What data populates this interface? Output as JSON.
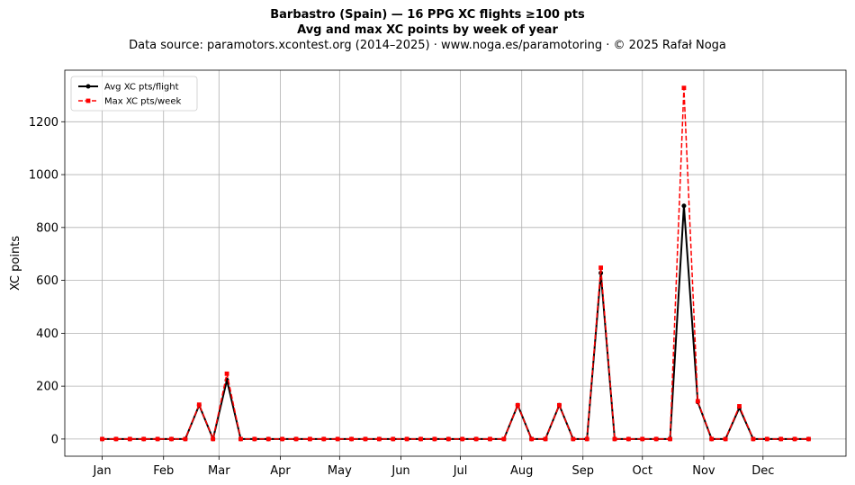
{
  "figure": {
    "title_line1": "Barbastro (Spain)  —  16 PPG XC flights ≥100 pts",
    "title_line2": "Avg and max XC points by week of year",
    "subtitle": "Data source: paramotors.xcontest.org (2014–2025)  ·  www.noga.es/paramotoring  ·  © 2025 Rafał Noga"
  },
  "chart_data": {
    "type": "line",
    "title": "Barbastro (Spain)  —  16 PPG XC flights ≥100 pts",
    "subtitle": "Avg and max XC points by week of year",
    "xlabel": "",
    "ylabel": "XC points",
    "x_unit": "week of year",
    "x": [
      1,
      2,
      3,
      4,
      5,
      6,
      7,
      8,
      9,
      10,
      11,
      12,
      13,
      14,
      15,
      16,
      17,
      18,
      19,
      20,
      21,
      22,
      23,
      24,
      25,
      26,
      27,
      28,
      29,
      30,
      31,
      32,
      33,
      34,
      35,
      36,
      37,
      38,
      39,
      40,
      41,
      42,
      43,
      44,
      45,
      46,
      47,
      48,
      49,
      50,
      51,
      52
    ],
    "xticks": [
      {
        "label": "Jan",
        "week": 1
      },
      {
        "label": "Feb",
        "week": 5.43
      },
      {
        "label": "Mar",
        "week": 9.43
      },
      {
        "label": "Apr",
        "week": 13.86
      },
      {
        "label": "May",
        "week": 18.14
      },
      {
        "label": "Jun",
        "week": 22.57
      },
      {
        "label": "Jul",
        "week": 26.86
      },
      {
        "label": "Aug",
        "week": 31.29
      },
      {
        "label": "Sep",
        "week": 35.71
      },
      {
        "label": "Oct",
        "week": 40
      },
      {
        "label": "Nov",
        "week": 44.43
      },
      {
        "label": "Dec",
        "week": 48.71
      }
    ],
    "xlim": [
      -1.7,
      54.7
    ],
    "ylim": [
      -65,
      1395
    ],
    "yticks": [
      0,
      200,
      400,
      600,
      800,
      1000,
      1200
    ],
    "grid": true,
    "legend_position": "upper left",
    "series": [
      {
        "name": "Avg XC pts/flight",
        "color": "#000000",
        "style": "solid",
        "marker": "circle",
        "values": [
          0,
          0,
          0,
          0,
          0,
          0,
          0,
          128,
          0,
          223,
          0,
          0,
          0,
          0,
          0,
          0,
          0,
          0,
          0,
          0,
          0,
          0,
          0,
          0,
          0,
          0,
          0,
          0,
          0,
          0,
          128,
          0,
          0,
          128,
          0,
          0,
          628,
          0,
          0,
          0,
          0,
          0,
          882,
          140,
          0,
          0,
          118,
          0,
          0,
          0,
          0,
          0
        ]
      },
      {
        "name": "Max XC pts/week",
        "color": "#ff0000",
        "style": "dashed",
        "marker": "square",
        "values": [
          0,
          0,
          0,
          0,
          0,
          0,
          0,
          130,
          0,
          247,
          0,
          0,
          0,
          0,
          0,
          0,
          0,
          0,
          0,
          0,
          0,
          0,
          0,
          0,
          0,
          0,
          0,
          0,
          0,
          0,
          128,
          0,
          0,
          128,
          0,
          0,
          648,
          0,
          0,
          0,
          0,
          0,
          1328,
          143,
          0,
          0,
          124,
          0,
          0,
          0,
          0,
          0
        ]
      }
    ]
  }
}
